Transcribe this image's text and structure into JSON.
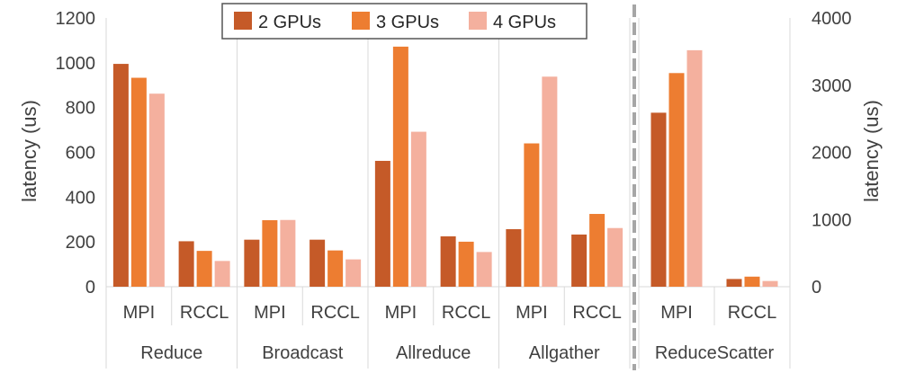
{
  "chart_data": {
    "type": "bar",
    "colors": {
      "2 GPUs": "#c55a28",
      "3 GPUs": "#ed7d31",
      "4 GPUs": "#f4b09e"
    },
    "legend": {
      "placement": "top-center",
      "entries": [
        "2 GPUs",
        "3 GPUs",
        "4 GPUs"
      ]
    },
    "grid": false,
    "panels": [
      {
        "axis": "left",
        "ylabel": "latency (us)",
        "ylim": [
          0,
          1200
        ],
        "yticks": [
          "0",
          "200",
          "400",
          "600",
          "800",
          "1000",
          "1200"
        ],
        "groups": [
          "Reduce",
          "Broadcast",
          "Allreduce",
          "Allgather"
        ],
        "categories": [
          "MPI",
          "RCCL",
          "MPI",
          "RCCL",
          "MPI",
          "RCCL",
          "MPI",
          "RCCL"
        ],
        "series": [
          {
            "name": "2 GPUs",
            "values": [
              995,
              203,
              210,
              210,
              562,
              225,
              257,
              233
            ]
          },
          {
            "name": "3 GPUs",
            "values": [
              933,
              160,
              297,
              162,
              1072,
              201,
              640,
              325
            ]
          },
          {
            "name": "4 GPUs",
            "values": [
              862,
              115,
              298,
              122,
              692,
              155,
              938,
              262
            ]
          }
        ]
      },
      {
        "axis": "right",
        "ylabel": "latency (us)",
        "ylim": [
          0,
          4000
        ],
        "yticks": [
          "0",
          "1000",
          "2000",
          "3000",
          "4000"
        ],
        "groups": [
          "ReduceScatter"
        ],
        "categories": [
          "MPI",
          "RCCL"
        ],
        "series": [
          {
            "name": "2 GPUs",
            "values": [
              2590,
              115
            ]
          },
          {
            "name": "3 GPUs",
            "values": [
              3180,
              150
            ]
          },
          {
            "name": "4 GPUs",
            "values": [
              3520,
              85
            ]
          }
        ]
      }
    ]
  }
}
